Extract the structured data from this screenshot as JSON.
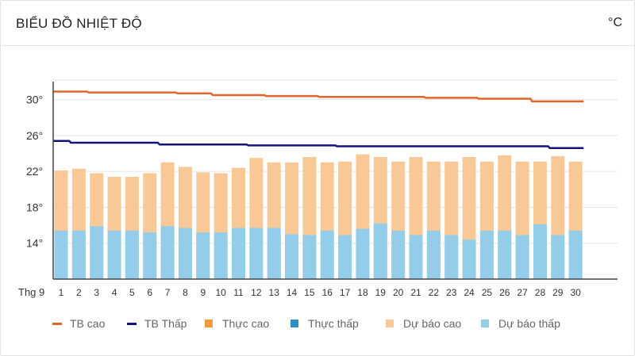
{
  "header": {
    "title": "BIỂU ĐỒ NHIỆT ĐỘ",
    "unit": "°C"
  },
  "colors": {
    "tb_cao": "#e0662b",
    "tb_thap": "#14137a",
    "thuc_cao": "#f29a3c",
    "thuc_thap": "#2f8fc7",
    "du_bao_cao": "#f8c996",
    "du_bao_thap": "#93cde9",
    "grid": "#e5e5e5",
    "axis": "#444444",
    "tick_text": "#333333"
  },
  "legend": [
    {
      "label": "TB cao",
      "kind": "line",
      "color": "#e0662b"
    },
    {
      "label": "TB Thấp",
      "kind": "line",
      "color": "#14137a"
    },
    {
      "label": "Thực cao",
      "kind": "box",
      "color": "#f29a3c"
    },
    {
      "label": "Thực thấp",
      "kind": "box",
      "color": "#2f8fc7"
    },
    {
      "label": "Dự báo cao",
      "kind": "box",
      "color": "#f8c996"
    },
    {
      "label": "Dự báo thấp",
      "kind": "box",
      "color": "#93cde9"
    }
  ],
  "chart_data": {
    "type": "bar",
    "x_axis_title": "Thg 9",
    "categories": [
      "1",
      "2",
      "3",
      "4",
      "5",
      "6",
      "7",
      "8",
      "9",
      "10",
      "11",
      "12",
      "13",
      "14",
      "15",
      "16",
      "17",
      "18",
      "19",
      "20",
      "21",
      "22",
      "23",
      "24",
      "25",
      "26",
      "27",
      "28",
      "29",
      "30"
    ],
    "ylim": [
      10,
      32
    ],
    "yticks": [
      14,
      18,
      22,
      26,
      30
    ],
    "ytick_labels": [
      "14°",
      "18°",
      "22°",
      "26°",
      "30°"
    ],
    "grid": true,
    "series": [
      {
        "name": "Dự báo cao",
        "type": "bar",
        "values": [
          22.1,
          22.3,
          21.8,
          21.4,
          21.4,
          21.8,
          23.0,
          22.5,
          21.9,
          21.8,
          22.4,
          23.5,
          23.0,
          23.0,
          23.6,
          23.0,
          23.1,
          23.9,
          23.6,
          23.1,
          23.6,
          23.1,
          23.1,
          23.6,
          23.1,
          23.8,
          23.1,
          23.1,
          23.7,
          23.1
        ]
      },
      {
        "name": "Dự báo thấp",
        "type": "bar",
        "values": [
          15.4,
          15.4,
          15.9,
          15.4,
          15.4,
          15.2,
          15.9,
          15.7,
          15.2,
          15.2,
          15.7,
          15.7,
          15.7,
          15.0,
          14.9,
          15.4,
          14.9,
          15.6,
          16.2,
          15.4,
          14.9,
          15.4,
          14.9,
          14.4,
          15.4,
          15.4,
          14.9,
          16.1,
          14.9,
          15.4
        ]
      },
      {
        "name": "TB cao",
        "type": "line",
        "values": [
          30.9,
          30.9,
          30.8,
          30.8,
          30.8,
          30.8,
          30.8,
          30.7,
          30.7,
          30.5,
          30.5,
          30.5,
          30.4,
          30.4,
          30.4,
          30.3,
          30.3,
          30.3,
          30.3,
          30.3,
          30.3,
          30.2,
          30.2,
          30.2,
          30.1,
          30.1,
          30.1,
          29.8,
          29.8,
          29.8
        ]
      },
      {
        "name": "TB Thấp",
        "type": "line",
        "values": [
          25.4,
          25.2,
          25.2,
          25.2,
          25.2,
          25.2,
          25.0,
          25.0,
          25.0,
          25.0,
          25.0,
          24.9,
          24.9,
          24.9,
          24.9,
          24.9,
          24.8,
          24.8,
          24.8,
          24.8,
          24.8,
          24.8,
          24.8,
          24.8,
          24.8,
          24.8,
          24.8,
          24.8,
          24.6,
          24.6
        ]
      }
    ]
  }
}
